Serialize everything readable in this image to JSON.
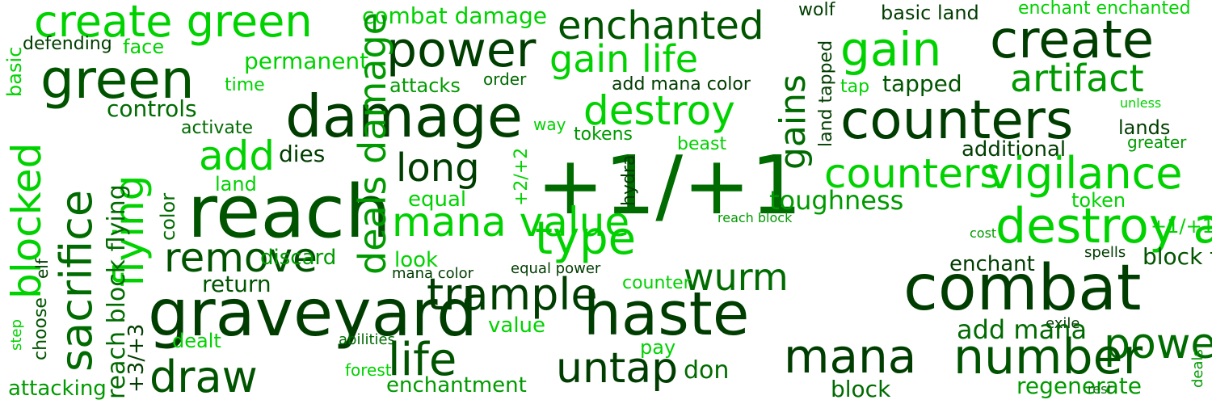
{
  "word_cloud": {
    "palette": {
      "deep_green": "#003d00",
      "dark_green": "#005400",
      "forest_green": "#006b00",
      "medium_green": "#009a00",
      "bright_green": "#00d200",
      "light_green": "#33dd33"
    },
    "words": [
      "create green",
      "combat damage",
      "enchanted",
      "wolf",
      "basic land",
      "enchant enchanted",
      "defending",
      "face",
      "basic",
      "green",
      "power",
      "create",
      "permanent",
      "gain life",
      "gain",
      "land tapped",
      "time",
      "attacks",
      "order",
      "add mana color",
      "tap",
      "tapped",
      "artifact",
      "damage",
      "destroy",
      "gains",
      "counters",
      "unless",
      "controls",
      "blocked",
      "sacrifice",
      "flying",
      "way",
      "activate",
      "tokens",
      "lands",
      "beast",
      "greater",
      "add",
      "dies",
      "long",
      "+2/+2",
      "+1/+1",
      "hydra",
      "additional",
      "counters",
      "vigilance",
      "land",
      "reach",
      "deals damage",
      "toughness",
      "color",
      "equal",
      "mana value",
      "token",
      "destroy artifact",
      "reach block",
      "elf",
      "+1/+1 counter",
      "type",
      "cost",
      "remove",
      "discard",
      "look",
      "spells",
      "block flying",
      "equal power",
      "mana color",
      "enchant",
      "return",
      "wurm",
      "counter",
      "combat",
      "trample",
      "graveyard",
      "haste",
      "step",
      "value",
      "choose",
      "reach block flying",
      "exile",
      "add mana",
      "dealt",
      "+3/+3",
      "abilities",
      "pay",
      "power toughness",
      "deals",
      "life",
      "mana",
      "number",
      "draw",
      "untap",
      "don",
      "forest",
      "attacking",
      "enchantment",
      "block",
      "regenerate",
      "rest"
    ]
  }
}
